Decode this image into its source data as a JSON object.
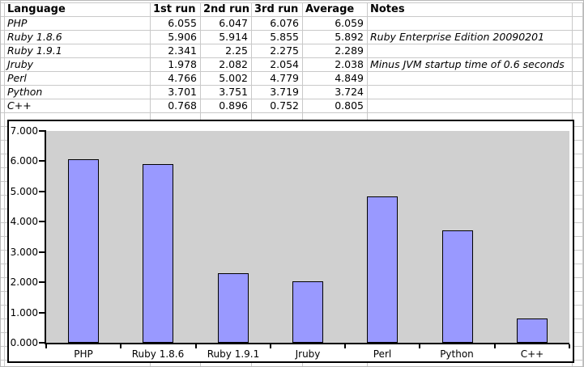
{
  "spreadsheet": {
    "headers": {
      "language": "Language",
      "run1": "1st run",
      "run2": "2nd run",
      "run3": "3rd run",
      "average": "Average",
      "notes": "Notes"
    },
    "rows": [
      {
        "language": "PHP",
        "run1": "6.055",
        "run2": "6.047",
        "run3": "6.076",
        "average": "6.059",
        "notes": ""
      },
      {
        "language": "Ruby 1.8.6",
        "run1": "5.906",
        "run2": "5.914",
        "run3": "5.855",
        "average": "5.892",
        "notes": "Ruby Enterprise Edition 20090201"
      },
      {
        "language": "Ruby 1.9.1",
        "run1": "2.341",
        "run2": "2.25",
        "run3": "2.275",
        "average": "2.289",
        "notes": ""
      },
      {
        "language": "Jruby",
        "run1": "1.978",
        "run2": "2.082",
        "run3": "2.054",
        "average": "2.038",
        "notes": "Minus JVM startup time of 0.6 seconds"
      },
      {
        "language": "Perl",
        "run1": "4.766",
        "run2": "5.002",
        "run3": "4.779",
        "average": "4.849",
        "notes": ""
      },
      {
        "language": "Python",
        "run1": "3.701",
        "run2": "3.751",
        "run3": "3.719",
        "average": "3.724",
        "notes": ""
      },
      {
        "language": "C++",
        "run1": "0.768",
        "run2": "0.896",
        "run3": "0.752",
        "average": "0.805",
        "notes": ""
      }
    ]
  },
  "chart_data": {
    "type": "bar",
    "title": "",
    "xlabel": "",
    "ylabel": "",
    "categories": [
      "PHP",
      "Ruby 1.8.6",
      "Ruby 1.9.1",
      "Jruby",
      "Perl",
      "Python",
      "C++"
    ],
    "series": [
      {
        "name": "Average",
        "values": [
          6.059,
          5.892,
          2.289,
          2.038,
          4.849,
          3.724,
          0.805
        ]
      }
    ],
    "ylim": [
      0,
      7
    ],
    "y_tick_interval": 1,
    "y_tick_labels_top_to_bottom": [
      "7.000",
      "6.000",
      "5.000",
      "4.000",
      "3.000",
      "2.000",
      "1.000",
      "0.000"
    ],
    "grid": false,
    "legend": "none",
    "bar_color": "#9999ff",
    "bar_border_color": "#000000",
    "plot_background": "#d0d0d0"
  }
}
